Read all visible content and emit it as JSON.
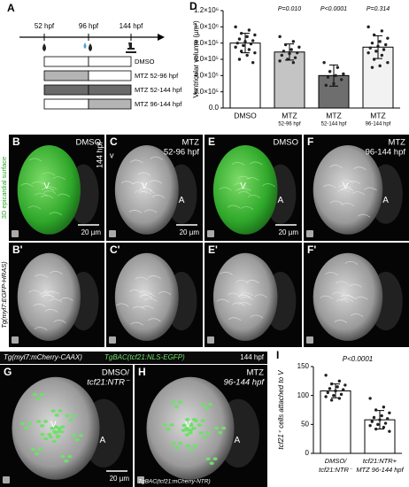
{
  "panel_a": {
    "letter": "A",
    "timepoints": [
      "52 hpf",
      "96 hpf",
      "144 hpf"
    ],
    "groups": [
      {
        "name": "DMSO",
        "fill": [
          "#ffffff",
          "#ffffff"
        ]
      },
      {
        "name": "MTZ 52-96 hpf",
        "fill": [
          "#b4b4b4",
          "#ffffff"
        ]
      },
      {
        "name": "MTZ 52-144 hpf",
        "fill": [
          "#6a6a6a",
          "#6a6a6a"
        ]
      },
      {
        "name": "MTZ 96-144 hpf",
        "fill": [
          "#ffffff",
          "#b4b4b4"
        ]
      }
    ]
  },
  "chart_data": [
    {
      "type": "bar",
      "panel": "D",
      "y_label": "Ventricular volume (µm³)",
      "categories": [
        [
          "DMSO"
        ],
        [
          "MTZ",
          "52-96 hpf"
        ],
        [
          "MTZ",
          "52-144 hpf"
        ],
        [
          "MTZ",
          "96-144 hpf"
        ]
      ],
      "values": [
        800000,
        690000,
        400000,
        750000
      ],
      "errors": [
        120000,
        100000,
        130000,
        140000
      ],
      "colors": [
        "#ffffff",
        "#c4c4c4",
        "#6e6e6e",
        "#f2f2f2"
      ],
      "points": [
        [
          1000000,
          960000,
          920000,
          900000,
          880000,
          850000,
          830000,
          820000,
          800000,
          790000,
          770000,
          750000,
          720000,
          700000,
          680000,
          650000,
          600000,
          560000
        ],
        [
          880000,
          820000,
          780000,
          750000,
          720000,
          700000,
          680000,
          670000,
          650000,
          620000,
          600000,
          580000,
          560000
        ],
        [
          560000,
          500000,
          450000,
          420000,
          400000,
          380000,
          350000,
          300000,
          280000
        ],
        [
          1000000,
          950000,
          900000,
          860000,
          820000,
          800000,
          780000,
          760000,
          740000,
          720000,
          700000,
          680000,
          650000,
          600000,
          560000,
          520000,
          500000
        ]
      ],
      "p_values": [
        null,
        "P=0.010",
        "P<0.0001",
        "P=0.314"
      ],
      "ylim": [
        0,
        1200000
      ],
      "yticks": [
        {
          "value": 0,
          "label": "0.0"
        },
        {
          "value": 200000,
          "label": "2.0×10⁵"
        },
        {
          "value": 400000,
          "label": "4.0×10⁵"
        },
        {
          "value": 600000,
          "label": "6.0×10⁵"
        },
        {
          "value": 800000,
          "label": "8.0×10⁵"
        },
        {
          "value": 1000000,
          "label": "1.0×10⁶"
        },
        {
          "value": 1200000,
          "label": "1.2×10⁶"
        }
      ]
    },
    {
      "type": "bar",
      "panel": "I",
      "y_label": "tcf21⁺ cells attached to V",
      "categories": [
        [
          "DMSO/",
          "tcf21:NTR⁻"
        ],
        [
          "tcf21:NTR+",
          "MTZ 96-144 hpf"
        ]
      ],
      "values": [
        108,
        58
      ],
      "errors": [
        12,
        16
      ],
      "colors": [
        "#ffffff",
        "#ffffff"
      ],
      "points": [
        [
          135,
          125,
          120,
          118,
          115,
          112,
          110,
          108,
          105,
          102,
          100,
          98,
          95,
          92
        ],
        [
          95,
          80,
          75,
          70,
          65,
          62,
          60,
          58,
          55,
          52,
          50,
          48,
          45,
          42,
          38
        ]
      ],
      "annotation": "P<0.0001",
      "ylim": [
        0,
        150
      ],
      "yticks": [
        0,
        50,
        100,
        150
      ]
    }
  ],
  "images": {
    "side_label": [
      "Tg(myl7:EGFP-HRAS)",
      "3D epicardial surface"
    ],
    "time": "144 hpf",
    "panels": [
      {
        "letter": "B",
        "label": [
          "DMSO"
        ],
        "v": "V",
        "scale": "20 µm"
      },
      {
        "letter": "C",
        "label": [
          "MTZ",
          "52-96 hpf"
        ],
        "v": "V",
        "a": "A",
        "extra": "v",
        "scale": "20 µm"
      },
      {
        "letter": "E",
        "label": [
          "DMSO"
        ],
        "v": "V",
        "a": "A",
        "scale": "20 µm"
      },
      {
        "letter": "F",
        "label": [
          "MTZ",
          "96-144 hpf"
        ],
        "v": "V",
        "a": "A"
      },
      {
        "letter": "B'"
      },
      {
        "letter": "C'"
      },
      {
        "letter": "E'"
      },
      {
        "letter": "F'"
      }
    ]
  },
  "lower": {
    "header": [
      "Tg(myl7:mCherry-CAAX)",
      "TgBAC(tcf21:NLS-EGFP)",
      "144 hpf"
    ],
    "panels": [
      {
        "letter": "G",
        "label": [
          "DMSO/",
          "tcf21:NTR⁻"
        ],
        "v": "V",
        "a": "A",
        "scale": "20 µm"
      },
      {
        "letter": "H",
        "label": [
          "MTZ",
          "96-144 hpf"
        ],
        "v": "V",
        "a": "A",
        "note": "TgBAC(tcf21:mCherry-NTR)"
      }
    ]
  }
}
